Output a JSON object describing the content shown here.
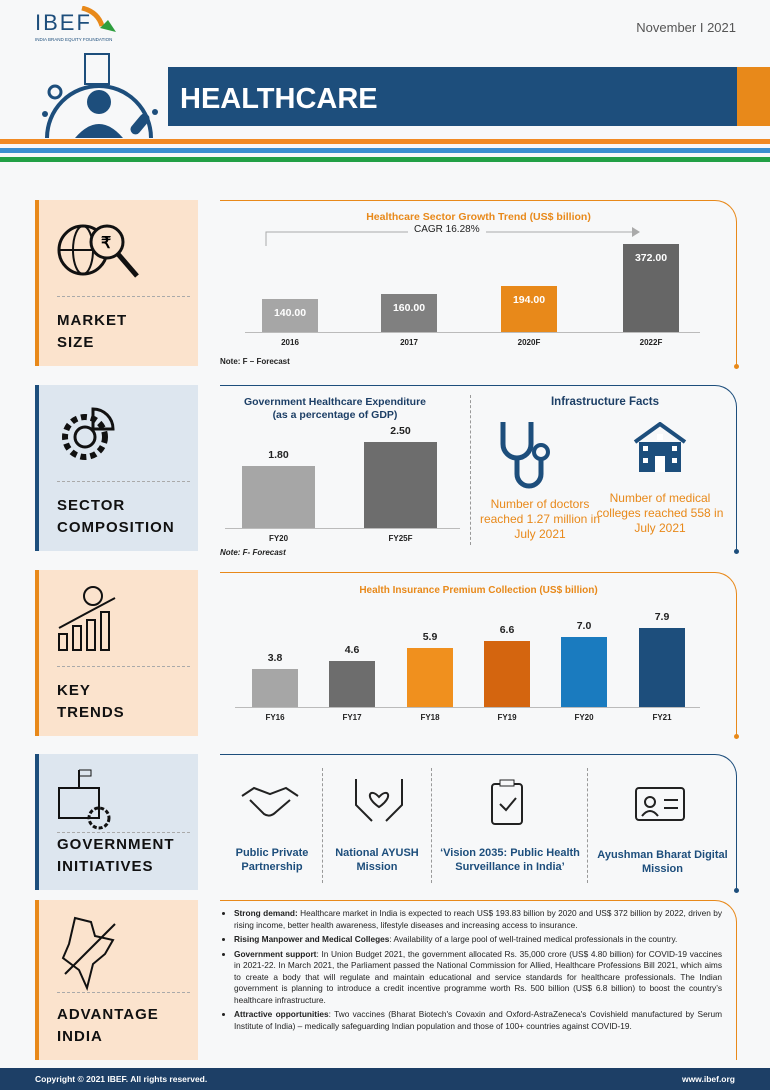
{
  "header": {
    "logo": "IBEF",
    "logo_sub": "INDIA BRAND EQUITY FOUNDATION",
    "date": "November  I  2021",
    "title": "HEALTHCARE"
  },
  "sections": [
    {
      "label1": "MARKET",
      "label2": "SIZE"
    },
    {
      "label1": "SECTOR",
      "label2": "COMPOSITION"
    },
    {
      "label1": "KEY",
      "label2": "TRENDS"
    },
    {
      "label1": "GOVERNMENT",
      "label2": "INITIATIVES"
    },
    {
      "label1": "ADVANTAGE",
      "label2": "INDIA"
    }
  ],
  "chart_data": [
    {
      "type": "bar",
      "title": "Healthcare Sector Growth Trend (US$ billion)",
      "annotation": "CAGR 16.28%",
      "categories": [
        "2016",
        "2017",
        "2020F",
        "2022F"
      ],
      "values": [
        140.0,
        160.0,
        194.0,
        372.0
      ],
      "labels": [
        "140.00",
        "160.00",
        "194.00",
        "372.00"
      ],
      "colors": [
        "#a6a6a6",
        "#808080",
        "#e8891a",
        "#666666"
      ],
      "note": "Note: F – Forecast",
      "ylim": [
        0,
        372
      ]
    },
    {
      "type": "bar",
      "title": "Government Healthcare Expenditure",
      "subtitle": "(as a percentage of GDP)",
      "categories": [
        "FY20",
        "FY25F"
      ],
      "values": [
        1.8,
        2.5
      ],
      "labels": [
        "1.80",
        "2.50"
      ],
      "colors": [
        "#a6a6a6",
        "#6d6d6d"
      ],
      "note": "Note: F- Forecast",
      "ylim": [
        0,
        2.5
      ]
    },
    {
      "type": "bar",
      "title": "Health Insurance Premium Collection (US$ billion)",
      "categories": [
        "FY16",
        "FY17",
        "FY18",
        "FY19",
        "FY20",
        "FY21"
      ],
      "values": [
        3.8,
        4.6,
        5.9,
        6.6,
        7.0,
        7.9
      ],
      "labels": [
        "3.8",
        "4.6",
        "5.9",
        "6.6",
        "7.0",
        "7.9"
      ],
      "colors": [
        "#a6a6a6",
        "#6d6d6d",
        "#f0901e",
        "#d4650f",
        "#1a7bbf",
        "#1d4e7c"
      ],
      "ylim": [
        0,
        7.9
      ]
    }
  ],
  "infra": {
    "title": "Infrastructure Facts",
    "doctors": "Number of doctors reached 1.27 million in July 2021",
    "colleges": "Number of medical colleges reached 558 in July 2021"
  },
  "initiatives": [
    "Public Private Partnership",
    "National AYUSH Mission",
    "‘Vision 2035: Public Health Surveillance in India’",
    "Ayushman Bharat Digital Mission"
  ],
  "advantages": [
    {
      "head": "Strong demand:",
      "text": " Healthcare market in India is expected to reach US$ 193.83 billion by 2020 and US$ 372 billion by 2022, driven by rising income, better health awareness, lifestyle diseases and increasing access to insurance."
    },
    {
      "head": "Rising Manpower and Medical Colleges",
      "text": ": Availability of a large pool of well-trained medical professionals in the country."
    },
    {
      "head": "Government support",
      "text": ": In Union Budget 2021, the government allocated Rs. 35,000 crore (US$ 4.80 billion) for COVID-19 vaccines in 2021-22. In March 2021, the Parliament passed the National Commission for Allied, Healthcare Professions Bill 2021, which aims to create a body that will regulate and maintain educational and service standards for healthcare professionals. The Indian government is planning to introduce a credit incentive programme worth Rs. 500 billion (US$ 6.8 billion) to boost the country’s healthcare infrastructure."
    },
    {
      "head": "Attractive opportunities",
      "text": ": Two vaccines (Bharat Biotech's Covaxin and Oxford-AstraZeneca's Covishield manufactured by Serum Institute of India) – medically safeguarding Indian population and those of 100+ countries against COVID-19."
    }
  ],
  "footer": {
    "copyright": "Copyright © 2021 IBEF. All rights reserved.",
    "url": "www.ibef.org"
  }
}
